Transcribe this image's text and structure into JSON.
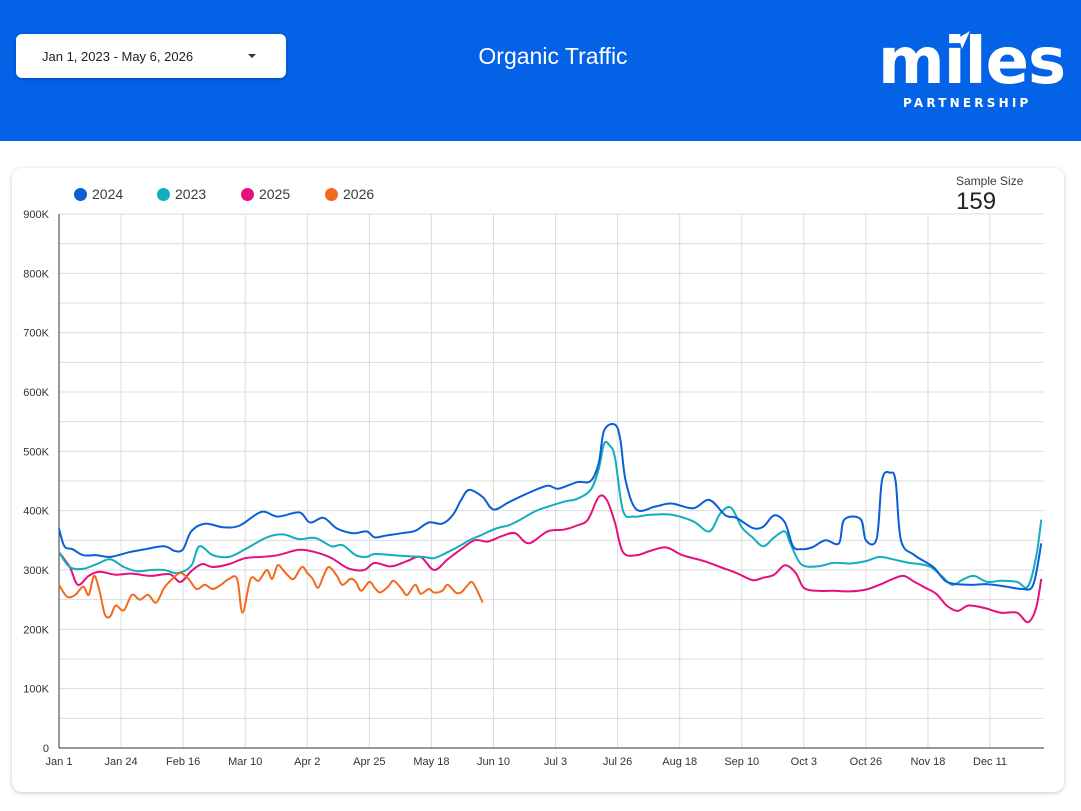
{
  "header": {
    "date_range": "Jan 1, 2023 - May 6, 2026",
    "title": "Organic Traffic",
    "logo_word": "miles",
    "logo_sub": "PARTNERSHIP"
  },
  "scorecard": {
    "label": "Sample Size",
    "value": "159"
  },
  "colors": {
    "header_bg": "#0462e6",
    "2024": "#0b5fd6",
    "2023": "#12aebf",
    "2025": "#e5107e",
    "2026": "#f26a1b"
  },
  "chart_data": {
    "type": "line",
    "title": "",
    "xlabel": "",
    "ylabel": "",
    "ylim": [
      0,
      900000
    ],
    "legend_position": "top-left",
    "grid": true,
    "y_ticks": [
      "0",
      "100K",
      "200K",
      "300K",
      "400K",
      "500K",
      "600K",
      "700K",
      "800K",
      "900K"
    ],
    "x_ticks": [
      "Jan 1",
      "Jan 24",
      "Feb 16",
      "Mar 10",
      "Apr 2",
      "Apr 25",
      "May 18",
      "Jun 10",
      "Jul 3",
      "Jul 26",
      "Aug 18",
      "Sep 10",
      "Oct 3",
      "Oct 26",
      "Nov 18",
      "Dec 11"
    ],
    "x_unit": "day of year",
    "series": [
      {
        "name": "2024",
        "points": [
          [
            1,
            370000
          ],
          [
            3,
            340000
          ],
          [
            6,
            335000
          ],
          [
            10,
            325000
          ],
          [
            15,
            325000
          ],
          [
            20,
            322000
          ],
          [
            27,
            330000
          ],
          [
            33,
            335000
          ],
          [
            40,
            340000
          ],
          [
            44,
            332000
          ],
          [
            47,
            335000
          ],
          [
            50,
            365000
          ],
          [
            55,
            378000
          ],
          [
            62,
            372000
          ],
          [
            68,
            375000
          ],
          [
            76,
            398000
          ],
          [
            82,
            390000
          ],
          [
            90,
            397000
          ],
          [
            94,
            380000
          ],
          [
            99,
            388000
          ],
          [
            104,
            370000
          ],
          [
            110,
            362000
          ],
          [
            115,
            365000
          ],
          [
            118,
            355000
          ],
          [
            122,
            358000
          ],
          [
            128,
            362000
          ],
          [
            133,
            366000
          ],
          [
            138,
            380000
          ],
          [
            143,
            378000
          ],
          [
            147,
            393000
          ],
          [
            150,
            418000
          ],
          [
            153,
            435000
          ],
          [
            158,
            423000
          ],
          [
            162,
            402000
          ],
          [
            168,
            415000
          ],
          [
            175,
            430000
          ],
          [
            182,
            442000
          ],
          [
            186,
            437000
          ],
          [
            193,
            448000
          ],
          [
            198,
            450000
          ],
          [
            201,
            480000
          ],
          [
            203,
            535000
          ],
          [
            207,
            545000
          ],
          [
            209,
            520000
          ],
          [
            211,
            450000
          ],
          [
            215,
            402000
          ],
          [
            222,
            407000
          ],
          [
            228,
            412000
          ],
          [
            236,
            404000
          ],
          [
            242,
            418000
          ],
          [
            248,
            392000
          ],
          [
            252,
            388000
          ],
          [
            258,
            371000
          ],
          [
            262,
            373000
          ],
          [
            266,
            392000
          ],
          [
            270,
            380000
          ],
          [
            273,
            340000
          ],
          [
            276,
            335000
          ],
          [
            280,
            338000
          ],
          [
            285,
            350000
          ],
          [
            290,
            345000
          ],
          [
            292,
            385000
          ],
          [
            298,
            386000
          ],
          [
            300,
            350000
          ],
          [
            304,
            353000
          ],
          [
            306,
            452000
          ],
          [
            309,
            464000
          ],
          [
            311,
            450000
          ],
          [
            313,
            350000
          ],
          [
            318,
            325000
          ],
          [
            325,
            305000
          ],
          [
            330,
            280000
          ],
          [
            338,
            275000
          ],
          [
            345,
            276000
          ],
          [
            352,
            272000
          ],
          [
            358,
            268000
          ],
          [
            362,
            275000
          ],
          [
            365,
            345000
          ]
        ]
      },
      {
        "name": "2023",
        "points": [
          [
            1,
            330000
          ],
          [
            5,
            305000
          ],
          [
            10,
            302000
          ],
          [
            15,
            310000
          ],
          [
            20,
            318000
          ],
          [
            25,
            305000
          ],
          [
            30,
            298000
          ],
          [
            35,
            300000
          ],
          [
            40,
            300000
          ],
          [
            45,
            295000
          ],
          [
            50,
            307000
          ],
          [
            53,
            340000
          ],
          [
            58,
            325000
          ],
          [
            64,
            322000
          ],
          [
            70,
            335000
          ],
          [
            78,
            355000
          ],
          [
            84,
            360000
          ],
          [
            90,
            352000
          ],
          [
            96,
            354000
          ],
          [
            102,
            340000
          ],
          [
            106,
            342000
          ],
          [
            111,
            325000
          ],
          [
            115,
            322000
          ],
          [
            118,
            327000
          ],
          [
            125,
            325000
          ],
          [
            131,
            323000
          ],
          [
            136,
            322000
          ],
          [
            140,
            320000
          ],
          [
            145,
            330000
          ],
          [
            150,
            342000
          ],
          [
            153,
            350000
          ],
          [
            158,
            360000
          ],
          [
            163,
            370000
          ],
          [
            168,
            376000
          ],
          [
            172,
            385000
          ],
          [
            177,
            398000
          ],
          [
            181,
            405000
          ],
          [
            188,
            415000
          ],
          [
            193,
            420000
          ],
          [
            198,
            435000
          ],
          [
            201,
            470000
          ],
          [
            203,
            513000
          ],
          [
            205,
            510000
          ],
          [
            207,
            490000
          ],
          [
            210,
            400000
          ],
          [
            214,
            390000
          ],
          [
            220,
            393000
          ],
          [
            228,
            393000
          ],
          [
            236,
            382000
          ],
          [
            242,
            365000
          ],
          [
            246,
            395000
          ],
          [
            250,
            405000
          ],
          [
            254,
            372000
          ],
          [
            258,
            355000
          ],
          [
            262,
            340000
          ],
          [
            266,
            355000
          ],
          [
            270,
            365000
          ],
          [
            272,
            345000
          ],
          [
            276,
            310000
          ],
          [
            282,
            306000
          ],
          [
            288,
            312000
          ],
          [
            294,
            311000
          ],
          [
            300,
            315000
          ],
          [
            305,
            322000
          ],
          [
            310,
            318000
          ],
          [
            316,
            312000
          ],
          [
            320,
            310000
          ],
          [
            324,
            305000
          ],
          [
            328,
            290000
          ],
          [
            332,
            275000
          ],
          [
            336,
            284000
          ],
          [
            340,
            290000
          ],
          [
            345,
            280000
          ],
          [
            350,
            282000
          ],
          [
            356,
            280000
          ],
          [
            360,
            272000
          ],
          [
            363,
            320000
          ],
          [
            365,
            385000
          ]
        ]
      },
      {
        "name": "2025",
        "points": [
          [
            1,
            330000
          ],
          [
            5,
            305000
          ],
          [
            8,
            275000
          ],
          [
            12,
            290000
          ],
          [
            16,
            297000
          ],
          [
            22,
            292000
          ],
          [
            28,
            294000
          ],
          [
            35,
            290000
          ],
          [
            42,
            293000
          ],
          [
            46,
            280000
          ],
          [
            50,
            298000
          ],
          [
            54,
            310000
          ],
          [
            58,
            305000
          ],
          [
            64,
            310000
          ],
          [
            70,
            320000
          ],
          [
            76,
            322000
          ],
          [
            82,
            325000
          ],
          [
            90,
            334000
          ],
          [
            96,
            330000
          ],
          [
            102,
            320000
          ],
          [
            108,
            303000
          ],
          [
            114,
            300000
          ],
          [
            118,
            312000
          ],
          [
            124,
            306000
          ],
          [
            130,
            315000
          ],
          [
            135,
            322000
          ],
          [
            140,
            300000
          ],
          [
            145,
            318000
          ],
          [
            150,
            335000
          ],
          [
            155,
            350000
          ],
          [
            160,
            348000
          ],
          [
            165,
            357000
          ],
          [
            170,
            362000
          ],
          [
            175,
            345000
          ],
          [
            182,
            365000
          ],
          [
            188,
            368000
          ],
          [
            193,
            375000
          ],
          [
            197,
            385000
          ],
          [
            201,
            423000
          ],
          [
            204,
            418000
          ],
          [
            207,
            380000
          ],
          [
            210,
            330000
          ],
          [
            215,
            325000
          ],
          [
            220,
            332000
          ],
          [
            226,
            338000
          ],
          [
            232,
            325000
          ],
          [
            240,
            315000
          ],
          [
            246,
            305000
          ],
          [
            252,
            295000
          ],
          [
            258,
            283000
          ],
          [
            262,
            287000
          ],
          [
            266,
            292000
          ],
          [
            270,
            308000
          ],
          [
            274,
            295000
          ],
          [
            277,
            270000
          ],
          [
            282,
            265000
          ],
          [
            288,
            265000
          ],
          [
            294,
            264000
          ],
          [
            300,
            267000
          ],
          [
            305,
            275000
          ],
          [
            310,
            285000
          ],
          [
            314,
            290000
          ],
          [
            318,
            280000
          ],
          [
            322,
            270000
          ],
          [
            326,
            260000
          ],
          [
            330,
            240000
          ],
          [
            334,
            231000
          ],
          [
            338,
            240000
          ],
          [
            344,
            236000
          ],
          [
            350,
            228000
          ],
          [
            356,
            228000
          ],
          [
            360,
            212000
          ],
          [
            363,
            235000
          ],
          [
            365,
            285000
          ]
        ]
      },
      {
        "name": "2026",
        "points": [
          [
            1,
            275000
          ],
          [
            4,
            255000
          ],
          [
            7,
            258000
          ],
          [
            10,
            272000
          ],
          [
            12,
            258000
          ],
          [
            14,
            290000
          ],
          [
            16,
            265000
          ],
          [
            18,
            225000
          ],
          [
            20,
            222000
          ],
          [
            22,
            240000
          ],
          [
            25,
            232000
          ],
          [
            28,
            258000
          ],
          [
            31,
            250000
          ],
          [
            34,
            258000
          ],
          [
            37,
            245000
          ],
          [
            40,
            270000
          ],
          [
            43,
            285000
          ],
          [
            46,
            295000
          ],
          [
            49,
            285000
          ],
          [
            52,
            268000
          ],
          [
            55,
            275000
          ],
          [
            58,
            268000
          ],
          [
            61,
            275000
          ],
          [
            64,
            285000
          ],
          [
            67,
            285000
          ],
          [
            69,
            228000
          ],
          [
            72,
            285000
          ],
          [
            75,
            282000
          ],
          [
            78,
            300000
          ],
          [
            80,
            285000
          ],
          [
            82,
            308000
          ],
          [
            84,
            300000
          ],
          [
            86,
            290000
          ],
          [
            88,
            285000
          ],
          [
            91,
            305000
          ],
          [
            93,
            295000
          ],
          [
            95,
            285000
          ],
          [
            97,
            270000
          ],
          [
            99,
            290000
          ],
          [
            101,
            305000
          ],
          [
            104,
            290000
          ],
          [
            106,
            275000
          ],
          [
            109,
            285000
          ],
          [
            111,
            280000
          ],
          [
            113,
            265000
          ],
          [
            116,
            280000
          ],
          [
            118,
            270000
          ],
          [
            120,
            262000
          ],
          [
            123,
            272000
          ],
          [
            125,
            282000
          ],
          [
            128,
            268000
          ],
          [
            130,
            258000
          ],
          [
            133,
            275000
          ],
          [
            135,
            260000
          ],
          [
            138,
            268000
          ],
          [
            140,
            262000
          ],
          [
            143,
            265000
          ],
          [
            145,
            275000
          ],
          [
            148,
            262000
          ],
          [
            150,
            262000
          ],
          [
            152,
            272000
          ],
          [
            154,
            280000
          ],
          [
            156,
            265000
          ],
          [
            158,
            245000
          ]
        ]
      }
    ]
  }
}
